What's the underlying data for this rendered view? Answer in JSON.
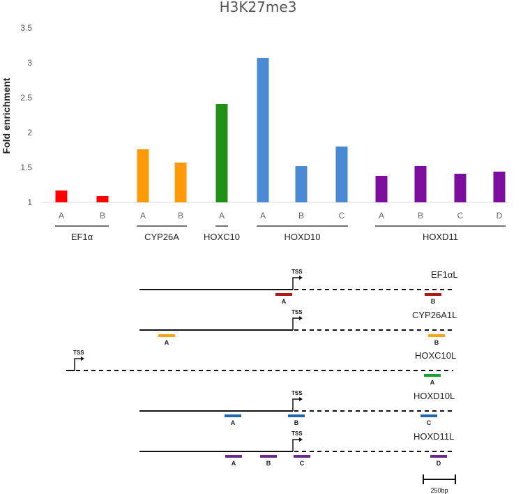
{
  "chart_data": {
    "type": "bar",
    "title": "H3K27me3",
    "ylabel": "Fold enrichment",
    "ylim": [
      1,
      3.5
    ],
    "yticks": [
      "1",
      "1.5",
      "2",
      "2.5",
      "3",
      "3.5"
    ],
    "categories": [
      "A",
      "B",
      "A",
      "B",
      "A",
      "A",
      "B",
      "C",
      "A",
      "B",
      "C",
      "D"
    ],
    "values": [
      1.17,
      1.09,
      1.76,
      1.57,
      2.41,
      3.07,
      1.52,
      1.8,
      1.38,
      1.52,
      1.41,
      1.44
    ],
    "groups": [
      {
        "name": "EF1α",
        "bars": [
          0,
          1
        ],
        "color": "#ff0000"
      },
      {
        "name": "CYP26A",
        "bars": [
          2,
          3
        ],
        "color": "#ff9a0b"
      },
      {
        "name": "HOXC10",
        "bars": [
          4
        ],
        "color": "#209018"
      },
      {
        "name": "HOXD10",
        "bars": [
          5,
          6,
          7
        ],
        "color": "#4a8ad4"
      },
      {
        "name": "HOXD11",
        "bars": [
          8,
          9,
          10,
          11
        ],
        "color": "#7b0e9c"
      }
    ]
  },
  "diagram": {
    "tss_label": "TSS",
    "scale_bar_label": "250bp",
    "genes": [
      {
        "name": "EF1αL",
        "primers": [
          {
            "label": "A",
            "color": "#b01818"
          },
          {
            "label": "B",
            "color": "#b01818"
          }
        ]
      },
      {
        "name": "CYP26A1L",
        "primers": [
          {
            "label": "A",
            "color": "#f4a31b"
          },
          {
            "label": "B",
            "color": "#f4a31b"
          }
        ]
      },
      {
        "name": "HOXC10L",
        "primers": [
          {
            "label": "A",
            "color": "#18a034"
          }
        ]
      },
      {
        "name": "HOXD10L",
        "primers": [
          {
            "label": "A",
            "color": "#1f66b5"
          },
          {
            "label": "B",
            "color": "#1f66b5"
          },
          {
            "label": "C",
            "color": "#1f66b5"
          }
        ]
      },
      {
        "name": "HOXD11L",
        "primers": [
          {
            "label": "A",
            "color": "#6a2a8a"
          },
          {
            "label": "B",
            "color": "#6a2a8a"
          },
          {
            "label": "C",
            "color": "#6a2a8a"
          },
          {
            "label": "D",
            "color": "#6a2a8a"
          }
        ]
      }
    ]
  }
}
